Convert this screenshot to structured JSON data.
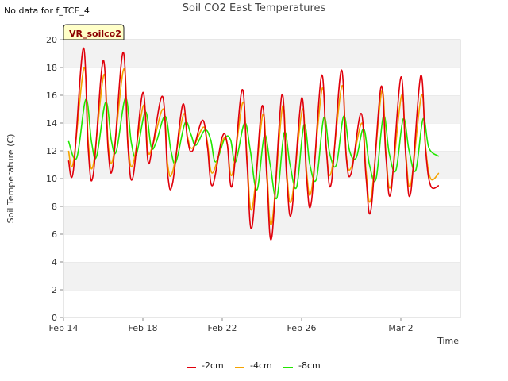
{
  "header": {
    "nodata": "No data for f_TCE_4",
    "title": "Soil CO2 East Temperatures"
  },
  "chart_data": {
    "type": "line",
    "title": "Soil CO2 East Temperatures",
    "site_label": "VR_soilco2",
    "xlabel": "Time",
    "ylabel": "Soil Temperature (C)",
    "ylim": [
      0,
      20
    ],
    "yticks": [
      0,
      2,
      4,
      6,
      8,
      10,
      12,
      14,
      16,
      18,
      20
    ],
    "xlim": [
      "2024-02-14",
      "2024-03-05"
    ],
    "xticks": [
      {
        "date": "2024-02-14",
        "label": "Feb 14"
      },
      {
        "date": "2024-02-18",
        "label": "Feb 18"
      },
      {
        "date": "2024-02-22",
        "label": "Feb 22"
      },
      {
        "date": "2024-02-26",
        "label": "Feb 26"
      },
      {
        "date": "2024-03-02",
        "label": "Mar 2"
      }
    ],
    "grid": "horizontal bands",
    "legend_position": "bottom",
    "series": [
      {
        "name": "-2cm",
        "color": "#e0000b",
        "x": [
          "2024-02-14 06:00",
          "2024-02-14 12:00",
          "2024-02-15 00:00",
          "2024-02-15 06:00",
          "2024-02-15 12:00",
          "2024-02-16 00:00",
          "2024-02-16 06:00",
          "2024-02-16 12:00",
          "2024-02-17 00:00",
          "2024-02-17 06:00",
          "2024-02-17 12:00",
          "2024-02-18 00:00",
          "2024-02-18 06:00",
          "2024-02-18 12:00",
          "2024-02-19 00:00",
          "2024-02-19 06:00",
          "2024-02-19 12:00",
          "2024-02-20 00:00",
          "2024-02-20 06:00",
          "2024-02-20 12:00",
          "2024-02-21 00:00",
          "2024-02-21 06:00",
          "2024-02-21 12:00",
          "2024-02-22 00:00",
          "2024-02-22 06:00",
          "2024-02-22 12:00",
          "2024-02-23 00:00",
          "2024-02-23 06:00",
          "2024-02-23 12:00",
          "2024-02-24 00:00",
          "2024-02-24 06:00",
          "2024-02-24 12:00",
          "2024-02-25 00:00",
          "2024-02-25 06:00",
          "2024-02-25 12:00",
          "2024-02-26 00:00",
          "2024-02-26 06:00",
          "2024-02-26 12:00",
          "2024-02-27 00:00",
          "2024-02-27 06:00",
          "2024-02-27 12:00",
          "2024-02-28 00:00",
          "2024-02-28 06:00",
          "2024-02-28 12:00",
          "2024-02-29 00:00",
          "2024-02-29 06:00",
          "2024-02-29 12:00",
          "2024-03-01 00:00",
          "2024-03-01 06:00",
          "2024-03-01 12:00",
          "2024-03-02 00:00",
          "2024-03-02 06:00",
          "2024-03-02 12:00",
          "2024-03-03 00:00",
          "2024-03-03 06:00",
          "2024-03-03 12:00",
          "2024-03-03 22:00"
        ],
        "values": [
          11.3,
          10.6,
          19.4,
          12.0,
          10.3,
          18.5,
          12.0,
          11.0,
          19.1,
          12.2,
          10.1,
          16.2,
          11.3,
          12.4,
          15.9,
          10.3,
          9.7,
          15.3,
          12.8,
          12.0,
          14.2,
          12.3,
          9.5,
          13.0,
          12.5,
          9.5,
          16.4,
          11.0,
          6.5,
          15.2,
          10.0,
          5.8,
          16.0,
          10.0,
          7.6,
          15.8,
          10.0,
          8.4,
          17.4,
          12.0,
          9.7,
          17.8,
          11.5,
          10.4,
          14.7,
          10.0,
          7.8,
          16.6,
          11.5,
          9.0,
          17.3,
          11.5,
          9.0,
          17.4,
          12.0,
          9.5,
          9.5
        ]
      },
      {
        "name": "-4cm",
        "color": "#f5a300",
        "x": [
          "2024-02-14 06:00",
          "2024-02-14 12:00",
          "2024-02-15 01:00",
          "2024-02-15 06:00",
          "2024-02-15 12:00",
          "2024-02-16 01:00",
          "2024-02-16 06:00",
          "2024-02-16 12:00",
          "2024-02-17 01:00",
          "2024-02-17 06:00",
          "2024-02-17 12:00",
          "2024-02-18 01:00",
          "2024-02-18 06:00",
          "2024-02-18 12:00",
          "2024-02-19 01:00",
          "2024-02-19 06:00",
          "2024-02-19 12:00",
          "2024-02-20 01:00",
          "2024-02-20 06:00",
          "2024-02-20 12:00",
          "2024-02-21 01:00",
          "2024-02-21 06:00",
          "2024-02-21 12:00",
          "2024-02-22 01:00",
          "2024-02-22 06:00",
          "2024-02-22 12:00",
          "2024-02-23 01:00",
          "2024-02-23 06:00",
          "2024-02-23 12:00",
          "2024-02-24 01:00",
          "2024-02-24 06:00",
          "2024-02-24 12:00",
          "2024-02-25 01:00",
          "2024-02-25 06:00",
          "2024-02-25 12:00",
          "2024-02-26 01:00",
          "2024-02-26 06:00",
          "2024-02-26 12:00",
          "2024-02-27 01:00",
          "2024-02-27 06:00",
          "2024-02-27 12:00",
          "2024-02-28 01:00",
          "2024-02-28 06:00",
          "2024-02-28 12:00",
          "2024-02-29 01:00",
          "2024-02-29 06:00",
          "2024-02-29 12:00",
          "2024-03-01 01:00",
          "2024-03-01 06:00",
          "2024-03-01 12:00",
          "2024-03-02 01:00",
          "2024-03-02 06:00",
          "2024-03-02 12:00",
          "2024-03-03 01:00",
          "2024-03-03 06:00",
          "2024-03-03 12:00",
          "2024-03-03 22:00"
        ],
        "values": [
          12.0,
          11.2,
          18.0,
          12.6,
          11.0,
          17.5,
          12.5,
          11.5,
          17.9,
          12.6,
          11.0,
          15.3,
          12.0,
          12.4,
          15.0,
          11.0,
          10.5,
          14.6,
          13.0,
          12.2,
          13.7,
          12.6,
          10.4,
          12.8,
          12.5,
          10.3,
          15.5,
          11.5,
          7.8,
          14.6,
          10.6,
          6.8,
          15.2,
          10.5,
          8.5,
          15.0,
          10.5,
          9.2,
          16.5,
          12.0,
          10.5,
          16.7,
          11.7,
          10.8,
          14.0,
          10.5,
          8.6,
          16.3,
          11.8,
          9.5,
          16.0,
          11.8,
          9.6,
          16.0,
          12.2,
          10.0,
          10.4
        ]
      },
      {
        "name": "-8cm",
        "color": "#22e600",
        "x": [
          "2024-02-14 06:00",
          "2024-02-14 16:00",
          "2024-02-15 03:00",
          "2024-02-15 10:00",
          "2024-02-15 16:00",
          "2024-02-16 03:00",
          "2024-02-16 10:00",
          "2024-02-16 16:00",
          "2024-02-17 03:00",
          "2024-02-17 10:00",
          "2024-02-17 16:00",
          "2024-02-18 03:00",
          "2024-02-18 10:00",
          "2024-02-18 16:00",
          "2024-02-19 03:00",
          "2024-02-19 10:00",
          "2024-02-19 16:00",
          "2024-02-20 03:00",
          "2024-02-20 10:00",
          "2024-02-20 16:00",
          "2024-02-21 03:00",
          "2024-02-21 10:00",
          "2024-02-21 16:00",
          "2024-02-22 03:00",
          "2024-02-22 10:00",
          "2024-02-22 16:00",
          "2024-02-23 03:00",
          "2024-02-23 10:00",
          "2024-02-23 18:00",
          "2024-02-24 03:00",
          "2024-02-24 10:00",
          "2024-02-24 18:00",
          "2024-02-25 03:00",
          "2024-02-25 10:00",
          "2024-02-25 18:00",
          "2024-02-26 03:00",
          "2024-02-26 10:00",
          "2024-02-26 18:00",
          "2024-02-27 03:00",
          "2024-02-27 10:00",
          "2024-02-27 18:00",
          "2024-02-28 03:00",
          "2024-02-28 10:00",
          "2024-02-28 18:00",
          "2024-02-29 03:00",
          "2024-02-29 10:00",
          "2024-02-29 18:00",
          "2024-03-01 03:00",
          "2024-03-01 10:00",
          "2024-03-01 18:00",
          "2024-03-02 03:00",
          "2024-03-02 10:00",
          "2024-03-02 18:00",
          "2024-03-03 03:00",
          "2024-03-03 10:00",
          "2024-03-03 22:00"
        ],
        "values": [
          12.7,
          11.5,
          15.7,
          12.6,
          11.6,
          15.5,
          12.7,
          12.0,
          15.8,
          12.6,
          11.7,
          14.8,
          12.3,
          12.6,
          14.5,
          12.0,
          11.2,
          14.0,
          13.2,
          12.4,
          13.5,
          12.8,
          11.2,
          12.9,
          12.8,
          11.2,
          14.0,
          12.0,
          9.2,
          13.1,
          11.0,
          8.6,
          13.3,
          11.0,
          9.4,
          13.9,
          11.0,
          10.0,
          14.4,
          11.8,
          11.0,
          14.5,
          12.0,
          11.5,
          13.6,
          11.0,
          10.0,
          14.5,
          11.8,
          10.6,
          14.3,
          12.0,
          10.6,
          14.3,
          12.2,
          11.6
        ]
      }
    ]
  }
}
